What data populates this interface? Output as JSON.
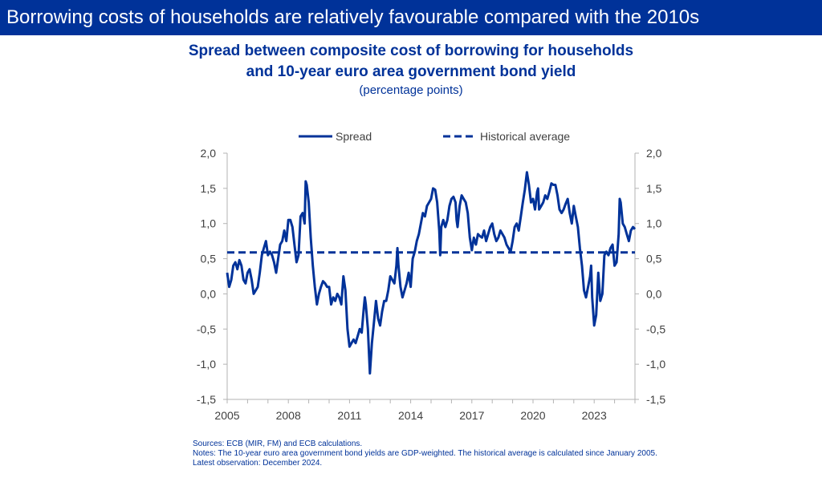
{
  "banner": {
    "title": "Borrowing costs of households are relatively favourable compared with the 2010s"
  },
  "chart_data": {
    "type": "line",
    "title_line1": "Spread between composite cost of borrowing for households",
    "title_line2": "and 10-year euro area government bond yield",
    "subtitle": "(percentage points)",
    "xlabel": "",
    "ylabel": "",
    "xlim": [
      2005.0,
      2025.0
    ],
    "ylim": [
      -1.5,
      2.0
    ],
    "y_ticks": [
      2.0,
      1.5,
      1.0,
      0.5,
      0.0,
      -0.5,
      -1.0,
      -1.5
    ],
    "y_tick_labels": [
      "2,0",
      "1,5",
      "1,0",
      "0,5",
      "0,0",
      "-0,5",
      "-1,0",
      "-1,5"
    ],
    "x_ticks": [
      2005,
      2008,
      2011,
      2014,
      2017,
      2020,
      2023
    ],
    "x_tick_labels": [
      "2005",
      "2008",
      "2011",
      "2014",
      "2017",
      "2020",
      "2023"
    ],
    "grid": false,
    "legend_position": "top",
    "series": [
      {
        "name": "Spread",
        "style": "solid",
        "color": "#003299",
        "points": [
          [
            2005.0,
            0.3
          ],
          [
            2005.1,
            0.1
          ],
          [
            2005.2,
            0.2
          ],
          [
            2005.3,
            0.4
          ],
          [
            2005.4,
            0.45
          ],
          [
            2005.5,
            0.35
          ],
          [
            2005.6,
            0.48
          ],
          [
            2005.7,
            0.4
          ],
          [
            2005.8,
            0.2
          ],
          [
            2005.9,
            0.15
          ],
          [
            2006.0,
            0.3
          ],
          [
            2006.1,
            0.35
          ],
          [
            2006.2,
            0.2
          ],
          [
            2006.3,
            0.0
          ],
          [
            2006.4,
            0.05
          ],
          [
            2006.5,
            0.1
          ],
          [
            2006.6,
            0.3
          ],
          [
            2006.7,
            0.55
          ],
          [
            2006.8,
            0.65
          ],
          [
            2006.9,
            0.75
          ],
          [
            2007.0,
            0.55
          ],
          [
            2007.1,
            0.6
          ],
          [
            2007.2,
            0.55
          ],
          [
            2007.3,
            0.45
          ],
          [
            2007.4,
            0.3
          ],
          [
            2007.5,
            0.5
          ],
          [
            2007.6,
            0.7
          ],
          [
            2007.7,
            0.75
          ],
          [
            2007.8,
            0.9
          ],
          [
            2007.9,
            0.75
          ],
          [
            2008.0,
            1.05
          ],
          [
            2008.1,
            1.05
          ],
          [
            2008.2,
            0.95
          ],
          [
            2008.3,
            0.7
          ],
          [
            2008.4,
            0.45
          ],
          [
            2008.5,
            0.55
          ],
          [
            2008.6,
            1.1
          ],
          [
            2008.7,
            1.15
          ],
          [
            2008.8,
            1.0
          ],
          [
            2008.85,
            1.6
          ],
          [
            2008.9,
            1.55
          ],
          [
            2009.0,
            1.3
          ],
          [
            2009.1,
            0.8
          ],
          [
            2009.2,
            0.4
          ],
          [
            2009.3,
            0.1
          ],
          [
            2009.4,
            -0.15
          ],
          [
            2009.5,
            0.0
          ],
          [
            2009.6,
            0.1
          ],
          [
            2009.7,
            0.18
          ],
          [
            2009.8,
            0.15
          ],
          [
            2009.9,
            0.1
          ],
          [
            2010.0,
            0.1
          ],
          [
            2010.1,
            -0.15
          ],
          [
            2010.2,
            -0.05
          ],
          [
            2010.3,
            -0.1
          ],
          [
            2010.4,
            0.0
          ],
          [
            2010.5,
            -0.05
          ],
          [
            2010.6,
            -0.15
          ],
          [
            2010.7,
            0.25
          ],
          [
            2010.8,
            0.05
          ],
          [
            2010.9,
            -0.5
          ],
          [
            2011.0,
            -0.75
          ],
          [
            2011.1,
            -0.7
          ],
          [
            2011.2,
            -0.65
          ],
          [
            2011.3,
            -0.7
          ],
          [
            2011.4,
            -0.6
          ],
          [
            2011.5,
            -0.5
          ],
          [
            2011.6,
            -0.55
          ],
          [
            2011.7,
            -0.2
          ],
          [
            2011.75,
            -0.05
          ],
          [
            2011.8,
            -0.15
          ],
          [
            2011.9,
            -0.5
          ],
          [
            2012.0,
            -1.13
          ],
          [
            2012.1,
            -0.7
          ],
          [
            2012.2,
            -0.4
          ],
          [
            2012.3,
            -0.1
          ],
          [
            2012.4,
            -0.35
          ],
          [
            2012.5,
            -0.45
          ],
          [
            2012.6,
            -0.25
          ],
          [
            2012.7,
            -0.1
          ],
          [
            2012.8,
            -0.1
          ],
          [
            2012.9,
            0.05
          ],
          [
            2013.0,
            0.25
          ],
          [
            2013.1,
            0.2
          ],
          [
            2013.2,
            0.15
          ],
          [
            2013.3,
            0.4
          ],
          [
            2013.35,
            0.65
          ],
          [
            2013.4,
            0.4
          ],
          [
            2013.5,
            0.1
          ],
          [
            2013.6,
            -0.05
          ],
          [
            2013.7,
            0.05
          ],
          [
            2013.8,
            0.15
          ],
          [
            2013.9,
            0.3
          ],
          [
            2014.0,
            0.1
          ],
          [
            2014.1,
            0.5
          ],
          [
            2014.2,
            0.6
          ],
          [
            2014.3,
            0.75
          ],
          [
            2014.4,
            0.85
          ],
          [
            2014.5,
            1.0
          ],
          [
            2014.6,
            1.15
          ],
          [
            2014.7,
            1.1
          ],
          [
            2014.8,
            1.25
          ],
          [
            2014.9,
            1.3
          ],
          [
            2015.0,
            1.35
          ],
          [
            2015.1,
            1.5
          ],
          [
            2015.2,
            1.48
          ],
          [
            2015.3,
            1.3
          ],
          [
            2015.4,
            0.9
          ],
          [
            2015.45,
            0.55
          ],
          [
            2015.5,
            0.95
          ],
          [
            2015.6,
            1.05
          ],
          [
            2015.7,
            0.95
          ],
          [
            2015.8,
            1.05
          ],
          [
            2015.9,
            1.25
          ],
          [
            2016.0,
            1.35
          ],
          [
            2016.1,
            1.38
          ],
          [
            2016.2,
            1.3
          ],
          [
            2016.25,
            1.05
          ],
          [
            2016.3,
            0.95
          ],
          [
            2016.4,
            1.25
          ],
          [
            2016.5,
            1.4
          ],
          [
            2016.6,
            1.35
          ],
          [
            2016.7,
            1.3
          ],
          [
            2016.8,
            1.15
          ],
          [
            2016.9,
            0.8
          ],
          [
            2017.0,
            0.62
          ],
          [
            2017.1,
            0.8
          ],
          [
            2017.2,
            0.7
          ],
          [
            2017.3,
            0.85
          ],
          [
            2017.4,
            0.82
          ],
          [
            2017.5,
            0.8
          ],
          [
            2017.6,
            0.9
          ],
          [
            2017.7,
            0.75
          ],
          [
            2017.8,
            0.85
          ],
          [
            2017.9,
            0.95
          ],
          [
            2018.0,
            1.0
          ],
          [
            2018.1,
            0.85
          ],
          [
            2018.2,
            0.75
          ],
          [
            2018.3,
            0.8
          ],
          [
            2018.4,
            0.9
          ],
          [
            2018.5,
            0.85
          ],
          [
            2018.6,
            0.8
          ],
          [
            2018.7,
            0.7
          ],
          [
            2018.8,
            0.65
          ],
          [
            2018.9,
            0.6
          ],
          [
            2019.0,
            0.75
          ],
          [
            2019.1,
            0.95
          ],
          [
            2019.2,
            1.0
          ],
          [
            2019.3,
            0.9
          ],
          [
            2019.4,
            1.1
          ],
          [
            2019.5,
            1.3
          ],
          [
            2019.6,
            1.48
          ],
          [
            2019.7,
            1.73
          ],
          [
            2019.8,
            1.55
          ],
          [
            2019.9,
            1.3
          ],
          [
            2020.0,
            1.35
          ],
          [
            2020.1,
            1.2
          ],
          [
            2020.2,
            1.45
          ],
          [
            2020.25,
            1.5
          ],
          [
            2020.3,
            1.2
          ],
          [
            2020.4,
            1.25
          ],
          [
            2020.5,
            1.3
          ],
          [
            2020.6,
            1.4
          ],
          [
            2020.7,
            1.35
          ],
          [
            2020.8,
            1.45
          ],
          [
            2020.9,
            1.57
          ],
          [
            2021.0,
            1.55
          ],
          [
            2021.1,
            1.55
          ],
          [
            2021.2,
            1.4
          ],
          [
            2021.3,
            1.2
          ],
          [
            2021.4,
            1.15
          ],
          [
            2021.5,
            1.2
          ],
          [
            2021.6,
            1.28
          ],
          [
            2021.7,
            1.35
          ],
          [
            2021.8,
            1.15
          ],
          [
            2021.9,
            1.0
          ],
          [
            2022.0,
            1.25
          ],
          [
            2022.1,
            1.1
          ],
          [
            2022.2,
            0.95
          ],
          [
            2022.3,
            0.65
          ],
          [
            2022.4,
            0.4
          ],
          [
            2022.5,
            0.05
          ],
          [
            2022.6,
            -0.05
          ],
          [
            2022.7,
            0.1
          ],
          [
            2022.8,
            0.25
          ],
          [
            2022.85,
            0.4
          ],
          [
            2022.9,
            -0.05
          ],
          [
            2023.0,
            -0.45
          ],
          [
            2023.1,
            -0.3
          ],
          [
            2023.2,
            0.3
          ],
          [
            2023.3,
            -0.1
          ],
          [
            2023.4,
            0.0
          ],
          [
            2023.5,
            0.55
          ],
          [
            2023.6,
            0.6
          ],
          [
            2023.7,
            0.55
          ],
          [
            2023.8,
            0.65
          ],
          [
            2023.9,
            0.7
          ],
          [
            2024.0,
            0.4
          ],
          [
            2024.1,
            0.45
          ],
          [
            2024.2,
            0.85
          ],
          [
            2024.25,
            1.35
          ],
          [
            2024.3,
            1.3
          ],
          [
            2024.4,
            1.0
          ],
          [
            2024.5,
            0.95
          ],
          [
            2024.6,
            0.85
          ],
          [
            2024.7,
            0.75
          ],
          [
            2024.8,
            0.9
          ],
          [
            2024.9,
            0.95
          ],
          [
            2025.0,
            0.92
          ]
        ]
      },
      {
        "name": "Historical average",
        "style": "dashed",
        "color": "#003299",
        "points": [
          [
            2005.0,
            0.59
          ],
          [
            2025.0,
            0.59
          ]
        ]
      }
    ]
  },
  "notes": {
    "sources": "Sources: ECB (MIR, FM) and ECB calculations.",
    "notes_text": "Notes: The 10-year euro area government bond yields are GDP-weighted. The historical average is calculated since January 2005.",
    "latest": "Latest observation: December 2024."
  }
}
